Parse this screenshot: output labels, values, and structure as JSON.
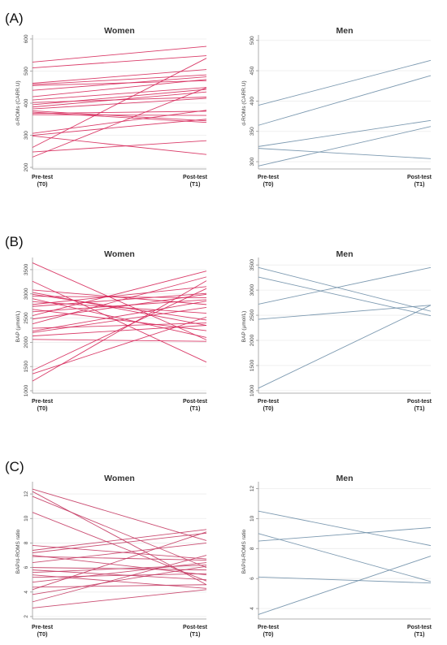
{
  "panels": [
    {
      "letter": "(A)"
    },
    {
      "letter": "(B)"
    },
    {
      "letter": "(C)"
    }
  ],
  "chart_data": [
    {
      "type": "line",
      "panel": "(A)",
      "title": "Women",
      "ylabel": "d-ROMs (CARR.U)",
      "x": [
        "Pre-test\n(T0)",
        "Post-test\n(T1)"
      ],
      "yticks": [
        200,
        300,
        400,
        500,
        600
      ],
      "ylim": [
        195,
        605
      ],
      "color": "#d6285a",
      "grid": true,
      "series": [
        {
          "values": [
            528,
            577
          ]
        },
        {
          "values": [
            510,
            548
          ]
        },
        {
          "values": [
            462,
            505
          ]
        },
        {
          "values": [
            458,
            488
          ]
        },
        {
          "values": [
            455,
            470
          ]
        },
        {
          "values": [
            440,
            482
          ]
        },
        {
          "values": [
            420,
            474
          ]
        },
        {
          "values": [
            410,
            449
          ]
        },
        {
          "values": [
            402,
            419
          ]
        },
        {
          "values": [
            395,
            443
          ]
        },
        {
          "values": [
            388,
            435
          ]
        },
        {
          "values": [
            382,
            415
          ]
        },
        {
          "values": [
            376,
            345
          ]
        },
        {
          "values": [
            372,
            340
          ]
        },
        {
          "values": [
            368,
            375
          ]
        },
        {
          "values": [
            364,
            362
          ]
        },
        {
          "values": [
            306,
            378
          ]
        },
        {
          "values": [
            300,
            350
          ]
        },
        {
          "values": [
            298,
            240
          ]
        },
        {
          "values": [
            248,
            283
          ]
        },
        {
          "values": [
            262,
            540
          ]
        },
        {
          "values": [
            232,
            448
          ]
        }
      ]
    },
    {
      "type": "line",
      "panel": "(A)",
      "title": "Men",
      "ylabel": "d-ROMs (CARR.U)",
      "x": [
        "Pre-test\n(T0)",
        "Post-test\n(T1)"
      ],
      "yticks": [
        300,
        350,
        400,
        450,
        500
      ],
      "ylim": [
        288,
        505
      ],
      "color": "#6f8fa8",
      "grid": true,
      "series": [
        {
          "values": [
            393,
            467
          ]
        },
        {
          "values": [
            360,
            442
          ]
        },
        {
          "values": [
            325,
            368
          ]
        },
        {
          "values": [
            322,
            305
          ]
        },
        {
          "values": [
            293,
            358
          ]
        }
      ]
    },
    {
      "type": "line",
      "panel": "(B)",
      "title": "Women",
      "ylabel": "BAP (µmol/L)",
      "x": [
        "Pre-test\n(T0)",
        "Post-test\n(T1)"
      ],
      "yticks": [
        1000,
        1500,
        2000,
        2500,
        3000,
        3500
      ],
      "ylim": [
        950,
        3700
      ],
      "color": "#d6285a",
      "grid": true,
      "series": [
        {
          "values": [
            3640,
            2050
          ]
        },
        {
          "values": [
            3260,
            1590
          ]
        },
        {
          "values": [
            3080,
            2780
          ]
        },
        {
          "values": [
            3030,
            2350
          ]
        },
        {
          "values": [
            2990,
            2460
          ]
        },
        {
          "values": [
            2950,
            2920
          ]
        },
        {
          "values": [
            2900,
            2100
          ]
        },
        {
          "values": [
            2840,
            2600
          ]
        },
        {
          "values": [
            2780,
            3150
          ]
        },
        {
          "values": [
            2740,
            3010
          ]
        },
        {
          "values": [
            2680,
            2240
          ]
        },
        {
          "values": [
            2630,
            2880
          ]
        },
        {
          "values": [
            2550,
            3470
          ]
        },
        {
          "values": [
            2480,
            2990
          ]
        },
        {
          "values": [
            2380,
            3350
          ]
        },
        {
          "values": [
            2290,
            2400
          ]
        },
        {
          "values": [
            2230,
            2850
          ]
        },
        {
          "values": [
            2200,
            2720
          ]
        },
        {
          "values": [
            2130,
            2350
          ]
        },
        {
          "values": [
            2060,
            2020
          ]
        },
        {
          "values": [
            1420,
            3110
          ]
        },
        {
          "values": [
            1350,
            2520
          ]
        },
        {
          "values": [
            1200,
            3270
          ]
        }
      ]
    },
    {
      "type": "line",
      "panel": "(B)",
      "title": "Men",
      "ylabel": "BAP (µmol/L)",
      "x": [
        "Pre-test\n(T0)",
        "Post-test\n(T1)"
      ],
      "yticks": [
        1000,
        1500,
        2000,
        2500,
        3000,
        3500
      ],
      "ylim": [
        950,
        3600
      ],
      "color": "#6f8fa8",
      "grid": true,
      "series": [
        {
          "values": [
            3450,
            2580
          ]
        },
        {
          "values": [
            3260,
            2490
          ]
        },
        {
          "values": [
            2720,
            3450
          ]
        },
        {
          "values": [
            2420,
            2700
          ]
        },
        {
          "values": [
            1050,
            2700
          ]
        }
      ]
    },
    {
      "type": "line",
      "panel": "(C)",
      "title": "Women",
      "ylabel": "BAP/d-ROMS ratio",
      "x": [
        "Pre-test\n(T0)",
        "Post-test\n(T1)"
      ],
      "yticks": [
        2,
        4,
        6,
        8,
        10,
        12
      ],
      "ylim": [
        1.8,
        12.8
      ],
      "color": "#c43a63",
      "grid": true,
      "series": [
        {
          "values": [
            12.4,
            8.2
          ]
        },
        {
          "values": [
            12.2,
            4.6
          ]
        },
        {
          "values": [
            11.8,
            6.0
          ]
        },
        {
          "values": [
            10.5,
            4.9
          ]
        },
        {
          "values": [
            7.8,
            6.7
          ]
        },
        {
          "values": [
            7.4,
            9.1
          ]
        },
        {
          "values": [
            7.2,
            8.8
          ]
        },
        {
          "values": [
            7.0,
            5.4
          ]
        },
        {
          "values": [
            6.9,
            6.6
          ]
        },
        {
          "values": [
            6.4,
            8.0
          ]
        },
        {
          "values": [
            6.0,
            5.8
          ]
        },
        {
          "values": [
            5.8,
            5.0
          ]
        },
        {
          "values": [
            5.6,
            6.2
          ]
        },
        {
          "values": [
            5.4,
            4.3
          ]
        },
        {
          "values": [
            5.2,
            5.5
          ]
        },
        {
          "values": [
            4.8,
            6.4
          ]
        },
        {
          "values": [
            4.4,
            4.6
          ]
        },
        {
          "values": [
            4.2,
            8.9
          ]
        },
        {
          "values": [
            3.8,
            6.1
          ]
        },
        {
          "values": [
            3.2,
            7.0
          ]
        },
        {
          "values": [
            2.7,
            4.2
          ]
        }
      ]
    },
    {
      "type": "line",
      "panel": "(C)",
      "title": "Men",
      "ylabel": "BAP/d-ROMS ratio",
      "x": [
        "Pre-test\n(T0)",
        "Post-test\n(T1)"
      ],
      "yticks": [
        4,
        6,
        8,
        10,
        12
      ],
      "ylim": [
        3.3,
        12.3
      ],
      "color": "#6f8fa8",
      "grid": true,
      "series": [
        {
          "values": [
            10.5,
            8.2
          ]
        },
        {
          "values": [
            9.0,
            5.8
          ]
        },
        {
          "values": [
            8.5,
            9.4
          ]
        },
        {
          "values": [
            6.1,
            5.7
          ]
        },
        {
          "values": [
            3.6,
            7.5
          ]
        }
      ]
    }
  ]
}
